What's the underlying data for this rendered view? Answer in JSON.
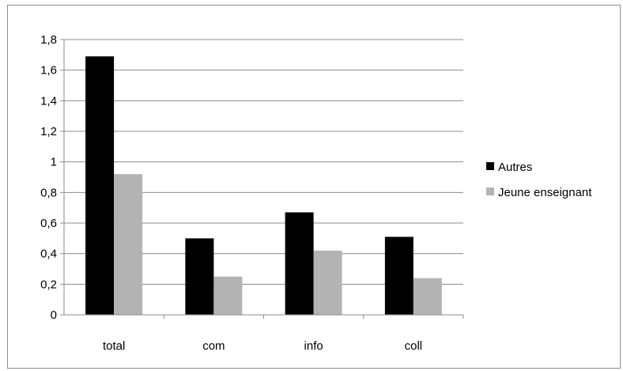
{
  "chart_data": {
    "type": "bar",
    "categories": [
      "total",
      "com",
      "info",
      "coll"
    ],
    "series": [
      {
        "name": "Autres",
        "values": [
          1.69,
          0.5,
          0.67,
          0.51
        ],
        "color": "#000000"
      },
      {
        "name": "Jeune enseignant",
        "values": [
          0.92,
          0.25,
          0.42,
          0.24
        ],
        "color": "#b3b3b3"
      }
    ],
    "yticks": [
      "0",
      "0,2",
      "0,4",
      "0,6",
      "0,8",
      "1",
      "1,2",
      "1,4",
      "1,6",
      "1,8"
    ],
    "ylim": [
      0,
      1.8
    ],
    "grid": true,
    "legend_position": "right",
    "title": "",
    "xlabel": "",
    "ylabel": ""
  }
}
